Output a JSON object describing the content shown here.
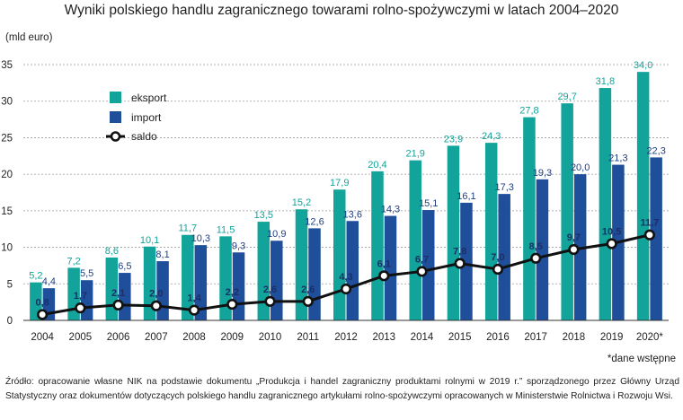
{
  "chart_data": {
    "type": "bar",
    "title": "Wyniki polskiego handlu zagranicznego towarami rolno-spożywczymi w latach 2004–2020",
    "ylabel": "(mld euro)",
    "categories": [
      "2004",
      "2005",
      "2006",
      "2007",
      "2008",
      "2009",
      "2010",
      "2011",
      "2012",
      "2013",
      "2014",
      "2015",
      "2016",
      "2017",
      "2018",
      "2019",
      "2020*"
    ],
    "ylim": [
      0,
      35
    ],
    "yticks": [
      0,
      5,
      10,
      15,
      20,
      25,
      30,
      35
    ],
    "grid": true,
    "legend_position": "top-left",
    "series": [
      {
        "name": "eksport",
        "kind": "bar",
        "color": "#12a39a",
        "values": [
          5.2,
          7.2,
          8.6,
          10.1,
          11.7,
          11.5,
          13.5,
          15.2,
          17.9,
          20.4,
          21.9,
          23.9,
          24.3,
          27.8,
          29.7,
          31.8,
          34.0
        ],
        "labels": [
          "5,2",
          "7,2",
          "8,6",
          "10,1",
          "11,7",
          "11,5",
          "13,5",
          "15,2",
          "17,9",
          "20,4",
          "21,9",
          "23,9",
          "24,3",
          "27,8",
          "29,7",
          "31,8",
          "34,0"
        ]
      },
      {
        "name": "import",
        "kind": "bar",
        "color": "#1f4e9b",
        "values": [
          4.4,
          5.5,
          6.5,
          8.1,
          10.3,
          9.3,
          10.9,
          12.6,
          13.6,
          14.3,
          15.1,
          16.1,
          17.3,
          19.3,
          20.0,
          21.3,
          22.3
        ],
        "labels": [
          "4,4",
          "5,5",
          "6,5",
          "8,1",
          "10,3",
          "9,3",
          "10,9",
          "12,6",
          "13,6",
          "14,3",
          "15,1",
          "16,1",
          "17,3",
          "19,3",
          "20,0",
          "21,3",
          "22,3"
        ]
      },
      {
        "name": "saldo",
        "kind": "line",
        "color": "#111111",
        "values": [
          0.8,
          1.7,
          2.1,
          2.0,
          1.4,
          2.2,
          2.6,
          2.6,
          4.3,
          6.1,
          6.7,
          7.8,
          7.0,
          8.5,
          9.7,
          10.5,
          11.7
        ],
        "labels": [
          "0,8",
          "1,7",
          "2,1",
          "2,0",
          "1,4",
          "2,2",
          "2,6",
          "2,6",
          "4,3",
          "6,1",
          "6,7",
          "7,8",
          "7,0",
          "8,5",
          "9,7",
          "10,5",
          "11,7"
        ]
      }
    ]
  },
  "footnote": "*dane wstępne",
  "source": "Źródło: opracowanie własne NIK na podstawie dokumentu „Produkcja i handel zagraniczny produktami rolnymi w 2019 r.” sporządzonego przez Główny Urząd Statystyczny oraz dokumentów dotyczących polskiego handlu zagranicznego artykułami rolno-spożywczymi opracowanych w Ministerstwie Rolnictwa i Rozwoju Wsi."
}
